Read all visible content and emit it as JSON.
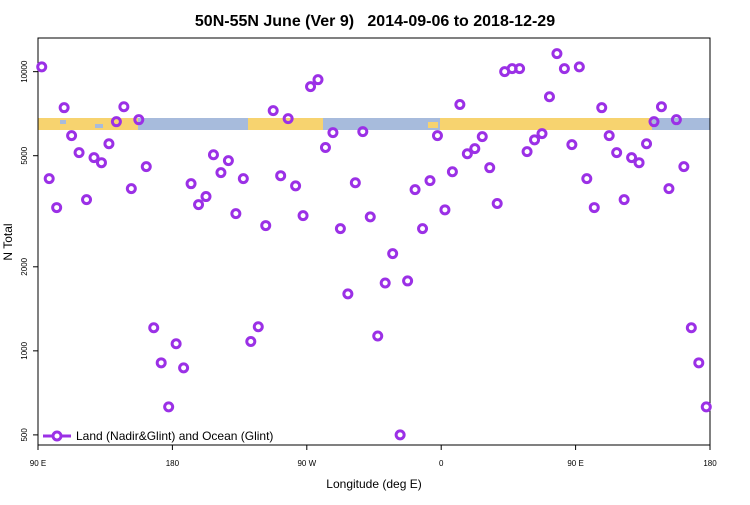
{
  "chart_data": {
    "type": "scatter",
    "title": "50N-55N June (Ver 9)   2014-09-06 to 2018-12-29",
    "xlabel": "Longitude (deg E)",
    "ylabel": "N Total",
    "yscale": "log",
    "xlim": [
      90,
      540
    ],
    "ylim": [
      460,
      13200
    ],
    "xticks": [
      {
        "value": 90,
        "label": "90 E"
      },
      180,
      {
        "value": 270,
        "label": "90 W"
      },
      {
        "value": 360,
        "label": "0"
      },
      {
        "value": 450,
        "label": "90 E"
      },
      {
        "value": 540,
        "label": "180"
      }
    ],
    "yticks": [
      500,
      1000,
      2000,
      5000,
      10000
    ],
    "legend": "bottom-left",
    "series": [
      {
        "name": "Land (Nadir&Glint) and Ocean (Glint)",
        "color": "#9b30e6",
        "x": [
          92.5,
          97.5,
          102.5,
          107.5,
          112.5,
          117.5,
          122.5,
          127.5,
          132.5,
          137.5,
          142.5,
          147.5,
          152.5,
          157.5,
          162.5,
          167.5,
          172.5,
          177.5,
          182.5,
          187.5,
          192.5,
          197.5,
          202.5,
          207.5,
          212.5,
          217.5,
          222.5,
          227.5,
          232.5,
          237.5,
          242.5,
          247.5,
          252.5,
          257.5,
          262.5,
          267.5,
          272.5,
          277.5,
          282.5,
          287.5,
          292.5,
          297.5,
          302.5,
          307.5,
          312.5,
          317.5,
          322.5,
          327.5,
          332.5,
          337.5,
          342.5,
          347.5,
          352.5,
          357.5,
          362.5,
          367.5,
          372.5,
          377.5,
          382.5,
          387.5,
          392.5,
          397.5,
          402.5,
          407.5,
          412.5,
          417.5,
          422.5,
          427.5,
          432.5,
          437.5,
          442.5,
          447.5,
          452.5,
          457.5,
          462.5,
          467.5,
          472.5,
          477.5,
          482.5,
          487.5,
          492.5,
          497.5,
          502.5,
          507.5,
          512.5,
          517.5,
          522.5,
          527.5,
          532.5,
          537.5
        ],
        "values": [
          10400,
          4140,
          3260,
          7430,
          5900,
          5130,
          3480,
          4920,
          4720,
          5520,
          6620,
          7490,
          3810,
          6730,
          4570,
          1210,
          906,
          630,
          1060,
          869,
          3970,
          3340,
          3570,
          5040,
          4350,
          4800,
          3100,
          4140,
          1080,
          1220,
          2810,
          7250,
          4240,
          6790,
          3900,
          3050,
          8840,
          9360,
          5350,
          6050,
          2740,
          1600,
          4000,
          6100,
          3020,
          1130,
          1750,
          2230,
          500,
          1780,
          3780,
          2740,
          4070,
          5900,
          3200,
          4380,
          7630,
          5080,
          5300,
          5850,
          4530,
          3370,
          10000,
          10250,
          10250,
          5170,
          5700,
          6000,
          8130,
          11600,
          10250,
          5480,
          10400,
          4140,
          3260,
          7430,
          5900,
          5130,
          3480,
          4920,
          4720,
          5520,
          6620,
          7490,
          3810,
          6730,
          4570,
          1210,
          906,
          630
        ]
      }
    ]
  }
}
